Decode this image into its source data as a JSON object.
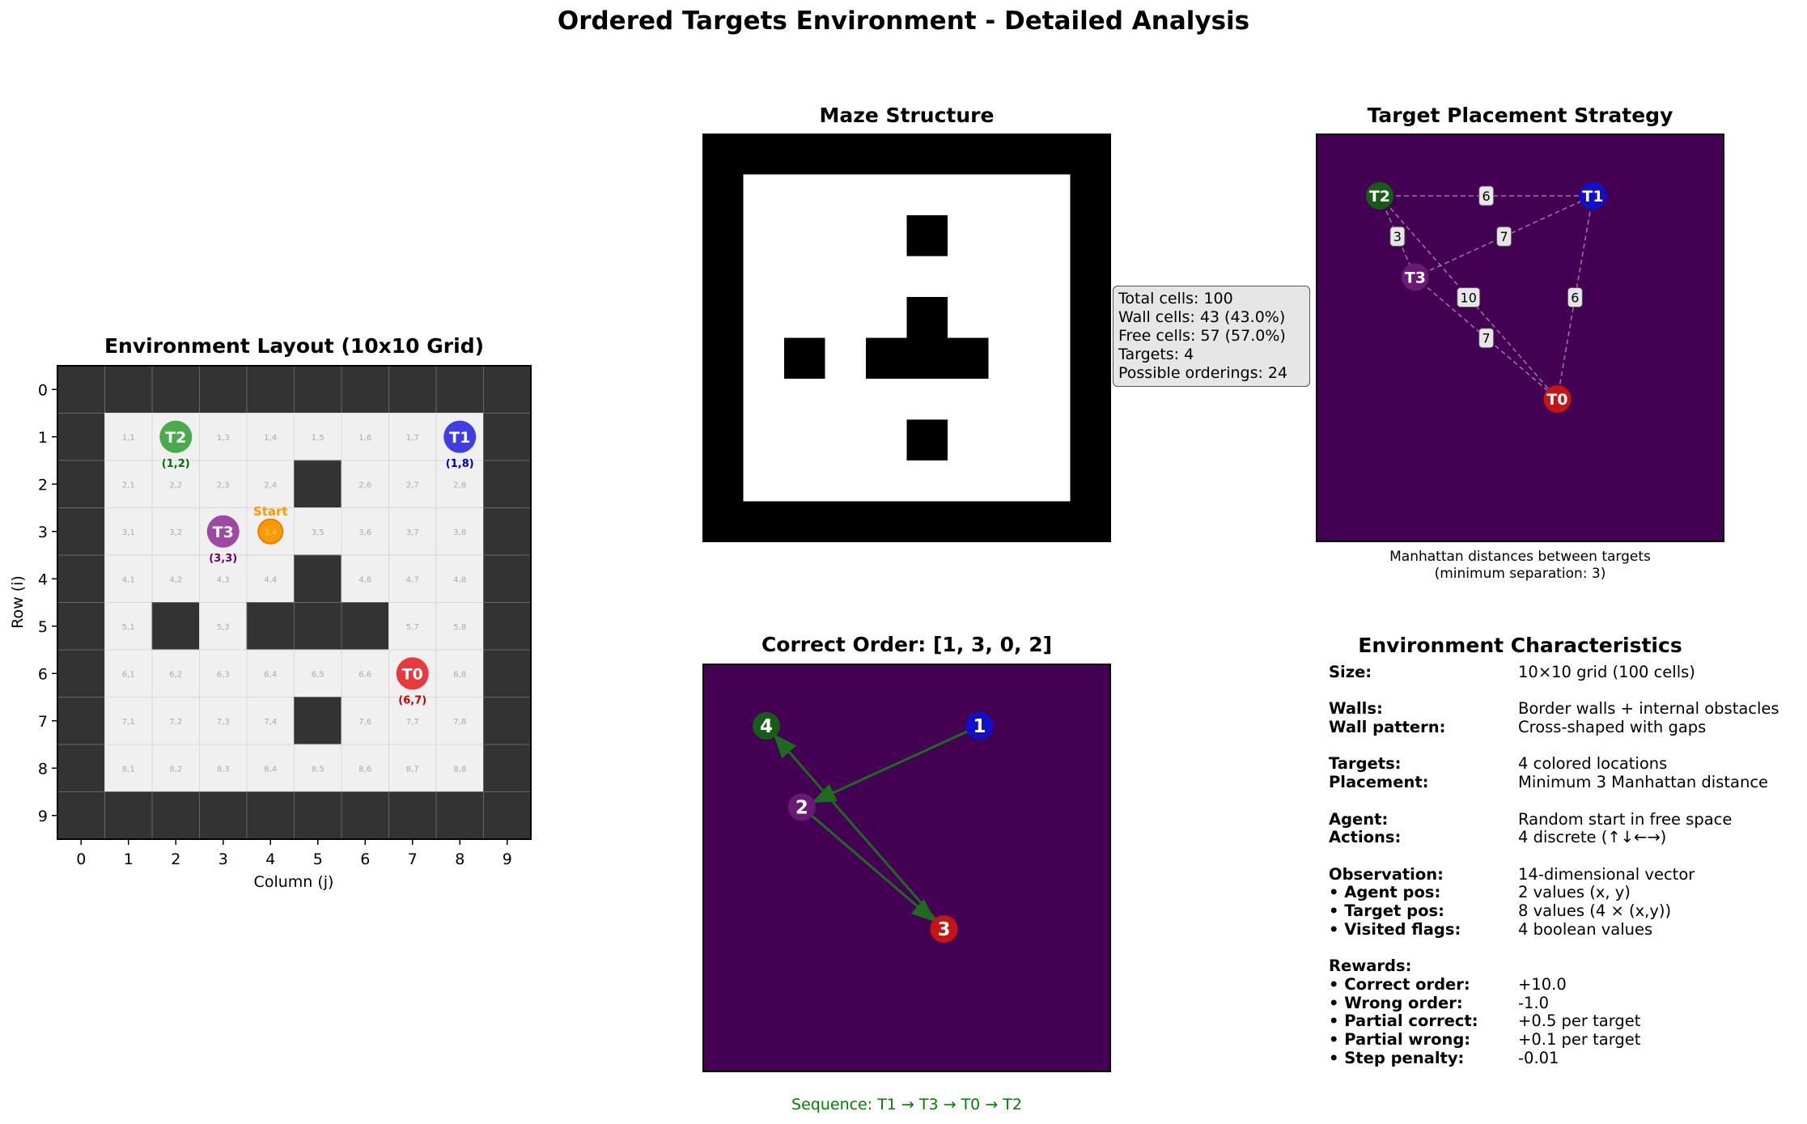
{
  "suptitle": "Ordered Targets Environment - Detailed Analysis",
  "colors": {
    "wall": "#333333",
    "free": "#f0f0f0",
    "target_t0": "#e41a1c",
    "target_t1": "#1f1fe0",
    "target_t2": "#2e9e2e",
    "target_t3": "#8e2a95",
    "start": "#ff9900",
    "viridis_bg": "#440154",
    "order_arrow": "#1e6b1e",
    "sequence_text": "#008000"
  },
  "layout_panel": {
    "title": "Environment Layout (10x10 Grid)",
    "xlabel": "Column (j)",
    "ylabel": "Row (i)"
  },
  "maze_panel": {
    "title": "Maze Structure"
  },
  "info_box": {
    "lines": [
      "Total cells: 100",
      "Wall cells: 43 (43.0%)",
      "Free cells: 57 (57.0%)",
      "Targets: 4",
      "Possible orderings: 24"
    ]
  },
  "placement_panel": {
    "title": "Target Placement Strategy",
    "caption_line1": "Manhattan distances between targets",
    "caption_line2": "(minimum separation: 3)"
  },
  "order_panel": {
    "title": "Correct Order: [1, 3, 0, 2]",
    "sequence": "Sequence: T1 → T3 → T0 → T2"
  },
  "characteristics": {
    "title": "Environment Characteristics",
    "rows": [
      {
        "k": "Size:",
        "v": "10×10 grid (100 cells)"
      },
      {
        "gap": true
      },
      {
        "k": "Walls:",
        "v": "Border walls + internal obstacles"
      },
      {
        "k": "Wall pattern:",
        "v": "Cross-shaped with gaps"
      },
      {
        "gap": true
      },
      {
        "k": "Targets:",
        "v": "4 colored locations"
      },
      {
        "k": "Placement:",
        "v": "Minimum 3 Manhattan distance"
      },
      {
        "gap": true
      },
      {
        "k": "Agent:",
        "v": "Random start in free space"
      },
      {
        "k": "Actions:",
        "v": "4 discrete (↑↓←→)"
      },
      {
        "gap": true
      },
      {
        "k": "Observation:",
        "v": "14-dimensional vector"
      },
      {
        "k": "• Agent pos:",
        "v": "2 values (x, y)"
      },
      {
        "k": "• Target pos:",
        "v": "8 values (4 × (x,y))"
      },
      {
        "k": "• Visited flags:",
        "v": "4 boolean values"
      },
      {
        "gap": true
      },
      {
        "k": "Rewards:",
        "v": ""
      },
      {
        "k": "• Correct order:",
        "v": "+10.0"
      },
      {
        "k": "• Wrong order:",
        "v": "-1.0"
      },
      {
        "k": "• Partial correct:",
        "v": "+0.5 per target"
      },
      {
        "k": "• Partial wrong:",
        "v": "+0.1 per target"
      },
      {
        "k": "• Step penalty:",
        "v": "-0.01"
      }
    ]
  },
  "chart_data": [
    {
      "type": "heatmap",
      "title": "Environment Layout (10x10 Grid)",
      "xlabel": "Column (j)",
      "ylabel": "Row (i)",
      "x_ticks": [
        0,
        1,
        2,
        3,
        4,
        5,
        6,
        7,
        8,
        9
      ],
      "y_ticks": [
        0,
        1,
        2,
        3,
        4,
        5,
        6,
        7,
        8,
        9
      ],
      "walls": [
        [
          1,
          1,
          1,
          1,
          1,
          1,
          1,
          1,
          1,
          1
        ],
        [
          1,
          0,
          0,
          0,
          0,
          0,
          0,
          0,
          0,
          1
        ],
        [
          1,
          0,
          0,
          0,
          0,
          1,
          0,
          0,
          0,
          1
        ],
        [
          1,
          0,
          0,
          0,
          0,
          0,
          0,
          0,
          0,
          1
        ],
        [
          1,
          0,
          0,
          0,
          0,
          1,
          0,
          0,
          0,
          1
        ],
        [
          1,
          0,
          1,
          0,
          1,
          1,
          1,
          0,
          0,
          1
        ],
        [
          1,
          0,
          0,
          0,
          0,
          0,
          0,
          0,
          0,
          1
        ],
        [
          1,
          0,
          0,
          0,
          0,
          1,
          0,
          0,
          0,
          1
        ],
        [
          1,
          0,
          0,
          0,
          0,
          0,
          0,
          0,
          0,
          1
        ],
        [
          1,
          1,
          1,
          1,
          1,
          1,
          1,
          1,
          1,
          1
        ]
      ],
      "targets": [
        {
          "label": "T0",
          "row": 6,
          "col": 7,
          "coord": "(6,7)"
        },
        {
          "label": "T1",
          "row": 1,
          "col": 8,
          "coord": "(1,8)"
        },
        {
          "label": "T2",
          "row": 1,
          "col": 2,
          "coord": "(1,2)"
        },
        {
          "label": "T3",
          "row": 3,
          "col": 3,
          "coord": "(3,3)"
        }
      ],
      "agent": {
        "label": "Start",
        "row": 3,
        "col": 4,
        "text": "3,4"
      }
    },
    {
      "type": "heatmap",
      "title": "Maze Structure",
      "walls": [
        [
          1,
          1,
          1,
          1,
          1,
          1,
          1,
          1,
          1,
          1
        ],
        [
          1,
          0,
          0,
          0,
          0,
          0,
          0,
          0,
          0,
          1
        ],
        [
          1,
          0,
          0,
          0,
          0,
          1,
          0,
          0,
          0,
          1
        ],
        [
          1,
          0,
          0,
          0,
          0,
          0,
          0,
          0,
          0,
          1
        ],
        [
          1,
          0,
          0,
          0,
          0,
          1,
          0,
          0,
          0,
          1
        ],
        [
          1,
          0,
          1,
          0,
          1,
          1,
          1,
          0,
          0,
          1
        ],
        [
          1,
          0,
          0,
          0,
          0,
          0,
          0,
          0,
          0,
          1
        ],
        [
          1,
          0,
          0,
          0,
          0,
          1,
          0,
          0,
          0,
          1
        ],
        [
          1,
          0,
          0,
          0,
          0,
          0,
          0,
          0,
          0,
          1
        ],
        [
          1,
          1,
          1,
          1,
          1,
          1,
          1,
          1,
          1,
          1
        ]
      ]
    },
    {
      "type": "scatter",
      "title": "Target Placement Strategy",
      "points": [
        {
          "label": "T0",
          "row": 6,
          "col": 7
        },
        {
          "label": "T1",
          "row": 1,
          "col": 8
        },
        {
          "label": "T2",
          "row": 1,
          "col": 2
        },
        {
          "label": "T3",
          "row": 3,
          "col": 3
        }
      ],
      "distances": [
        {
          "a": "T2",
          "b": "T1",
          "d": "6"
        },
        {
          "a": "T2",
          "b": "T3",
          "d": "3"
        },
        {
          "a": "T3",
          "b": "T1",
          "d": "7"
        },
        {
          "a": "T2",
          "b": "T0",
          "d": "10"
        },
        {
          "a": "T1",
          "b": "T0",
          "d": "6"
        },
        {
          "a": "T3",
          "b": "T0",
          "d": "7"
        }
      ]
    },
    {
      "type": "scatter",
      "title": "Correct Order: [1, 3, 0, 2]",
      "order": [
        1,
        3,
        0,
        2
      ],
      "points": [
        {
          "target": "T1",
          "rank": "1",
          "row": 1,
          "col": 8
        },
        {
          "target": "T3",
          "rank": "2",
          "row": 3,
          "col": 3
        },
        {
          "target": "T0",
          "rank": "3",
          "row": 6,
          "col": 7
        },
        {
          "target": "T2",
          "rank": "4",
          "row": 1,
          "col": 2
        }
      ],
      "sequence": "Sequence: T1 → T3 → T0 → T2"
    }
  ]
}
